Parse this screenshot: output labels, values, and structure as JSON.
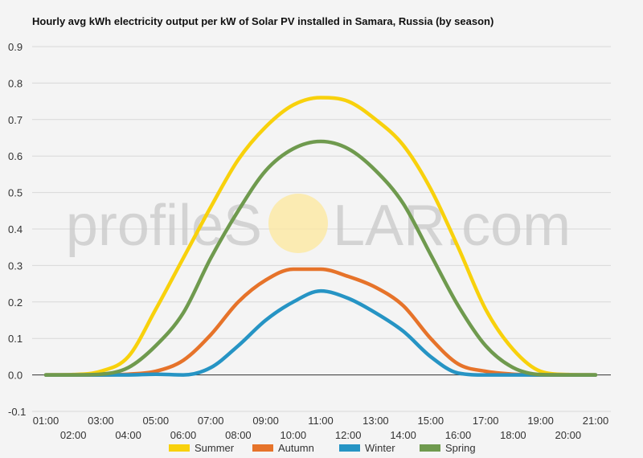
{
  "colors": {
    "Summer": "#f8d10c",
    "Autumn": "#e6732a",
    "Winter": "#2694c4",
    "Spring": "#6f9a4e",
    "grid": "#d8d8d8",
    "watermark": "#c9c9c9",
    "sun": "#fbe9a6"
  },
  "watermark": {
    "left": "profileS",
    "right": "LAR.com"
  },
  "chart_data": {
    "type": "line",
    "title": "Hourly avg kWh electricity output per kW of Solar PV installed in Samara, Russia (by season)",
    "xlabel": "",
    "ylabel": "",
    "ylim": [
      -0.1,
      0.9
    ],
    "yticks": [
      "-0.1",
      "0.0",
      "0.1",
      "0.2",
      "0.3",
      "0.4",
      "0.5",
      "0.6",
      "0.7",
      "0.8",
      "0.9"
    ],
    "grid": true,
    "legend": "bottom",
    "categories": [
      "01:00",
      "02:00",
      "03:00",
      "04:00",
      "05:00",
      "06:00",
      "07:00",
      "08:00",
      "09:00",
      "10:00",
      "11:00",
      "12:00",
      "13:00",
      "14:00",
      "15:00",
      "16:00",
      "17:00",
      "18:00",
      "19:00",
      "20:00",
      "21:00"
    ],
    "series": [
      {
        "name": "Summer",
        "values": [
          0.0,
          0.001,
          0.01,
          0.05,
          0.18,
          0.32,
          0.46,
          0.59,
          0.68,
          0.74,
          0.76,
          0.75,
          0.7,
          0.63,
          0.51,
          0.35,
          0.18,
          0.07,
          0.01,
          0.001,
          0.0
        ]
      },
      {
        "name": "Autumn",
        "values": [
          0.0,
          0.0,
          0.0,
          0.002,
          0.01,
          0.04,
          0.11,
          0.2,
          0.26,
          0.29,
          0.29,
          0.27,
          0.24,
          0.19,
          0.1,
          0.03,
          0.01,
          0.002,
          0.0,
          0.0,
          0.0
        ]
      },
      {
        "name": "Winter",
        "values": [
          0.0,
          0.0,
          0.0,
          0.0,
          0.002,
          0.0,
          0.02,
          0.08,
          0.15,
          0.2,
          0.23,
          0.21,
          0.17,
          0.12,
          0.05,
          0.005,
          0.0,
          0.0,
          0.0,
          0.0,
          0.0
        ]
      },
      {
        "name": "Spring",
        "values": [
          0.0,
          0.0,
          0.002,
          0.02,
          0.08,
          0.17,
          0.32,
          0.45,
          0.56,
          0.62,
          0.64,
          0.62,
          0.56,
          0.47,
          0.33,
          0.19,
          0.08,
          0.02,
          0.001,
          0.0,
          0.0
        ]
      }
    ]
  }
}
